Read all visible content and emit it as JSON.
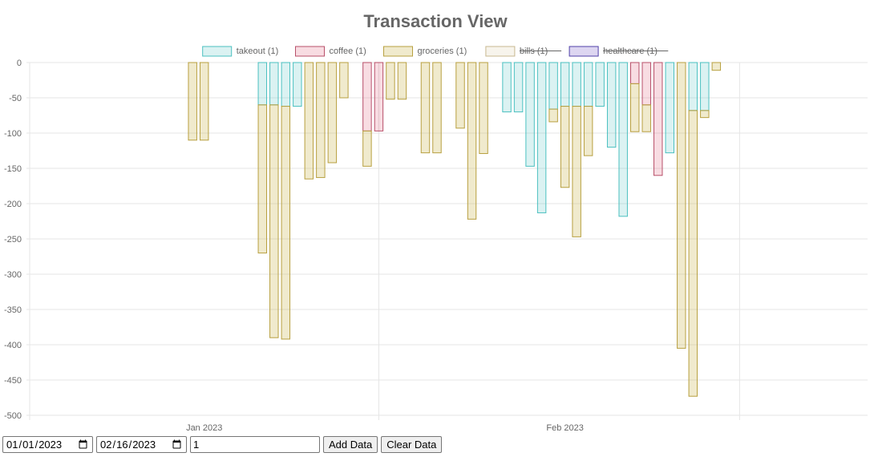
{
  "controls": {
    "start_date": "2023-01-01",
    "end_date": "2023-02-16",
    "amount_value": "1",
    "add_label": "Add Data",
    "clear_label": "Clear Data"
  },
  "chart_data": {
    "type": "bar",
    "stacked": true,
    "title": "Transaction View",
    "xlabel": "",
    "ylabel": "",
    "ylim": [
      -500,
      0
    ],
    "yticks": [
      0,
      -50,
      -100,
      -150,
      -200,
      -250,
      -300,
      -350,
      -400,
      -450,
      -500
    ],
    "x_ticks": [
      {
        "date": "2023-01-01",
        "label": "Jan 2023"
      },
      {
        "date": "2023-02-01",
        "label": "Feb 2023"
      }
    ],
    "xlim": [
      "2022-12-17",
      "2023-02-27"
    ],
    "grid": true,
    "legend_position": "top",
    "series": [
      {
        "name": "takeout (1)",
        "color": "#4bc0c0",
        "fill": "rgba(75,192,192,0.2)",
        "hidden": false,
        "points": [
          [
            "2023-01-06",
            -60
          ],
          [
            "2023-01-07",
            -60
          ],
          [
            "2023-01-08",
            -62
          ],
          [
            "2023-01-09",
            -62
          ],
          [
            "2023-01-27",
            -70
          ],
          [
            "2023-01-28",
            -70
          ],
          [
            "2023-01-29",
            -147
          ],
          [
            "2023-01-30",
            -213
          ],
          [
            "2023-01-31",
            -66
          ],
          [
            "2023-02-01",
            -62
          ],
          [
            "2023-02-02",
            -62
          ],
          [
            "2023-02-03",
            -62
          ],
          [
            "2023-02-04",
            -62
          ],
          [
            "2023-02-05",
            -120
          ],
          [
            "2023-02-06",
            -218
          ],
          [
            "2023-02-10",
            -128
          ],
          [
            "2023-02-12",
            -68
          ],
          [
            "2023-02-13",
            -68
          ]
        ]
      },
      {
        "name": "coffee (1)",
        "color": "#b8506a",
        "fill": "rgba(220,80,110,0.2)",
        "hidden": false,
        "points": [
          [
            "2023-01-15",
            -97
          ],
          [
            "2023-01-16",
            -97
          ],
          [
            "2023-02-07",
            -30
          ],
          [
            "2023-02-08",
            -60
          ],
          [
            "2023-02-09",
            -160
          ]
        ]
      },
      {
        "name": "groceries (1)",
        "color": "#b8a040",
        "fill": "rgba(205,185,90,0.3)",
        "hidden": false,
        "points": [
          [
            "2022-12-31",
            -110
          ],
          [
            "2023-01-01",
            -110
          ],
          [
            "2023-01-06",
            -210
          ],
          [
            "2023-01-07",
            -330
          ],
          [
            "2023-01-08",
            -330
          ],
          [
            "2023-01-10",
            -165
          ],
          [
            "2023-01-11",
            -163
          ],
          [
            "2023-01-12",
            -142
          ],
          [
            "2023-01-13",
            -50
          ],
          [
            "2023-01-15",
            -50
          ],
          [
            "2023-01-17",
            -52
          ],
          [
            "2023-01-18",
            -52
          ],
          [
            "2023-01-20",
            -128
          ],
          [
            "2023-01-21",
            -128
          ],
          [
            "2023-01-23",
            -93
          ],
          [
            "2023-01-24",
            -222
          ],
          [
            "2023-01-25",
            -129
          ],
          [
            "2023-01-31",
            -18
          ],
          [
            "2023-02-01",
            -115
          ],
          [
            "2023-02-02",
            -185
          ],
          [
            "2023-02-03",
            -70
          ],
          [
            "2023-02-07",
            -68
          ],
          [
            "2023-02-08",
            -38
          ],
          [
            "2023-02-11",
            -405
          ],
          [
            "2023-02-12",
            -405
          ],
          [
            "2023-02-14",
            -11
          ],
          [
            "2023-02-13",
            -10
          ]
        ]
      },
      {
        "name": "bills (1)",
        "color": "#c8b890",
        "fill": "rgba(215,200,160,0.2)",
        "hidden": true,
        "points": []
      },
      {
        "name": "healthcare (1)",
        "color": "#5040a8",
        "fill": "rgba(120,90,200,0.25)",
        "hidden": true,
        "points": []
      }
    ]
  }
}
